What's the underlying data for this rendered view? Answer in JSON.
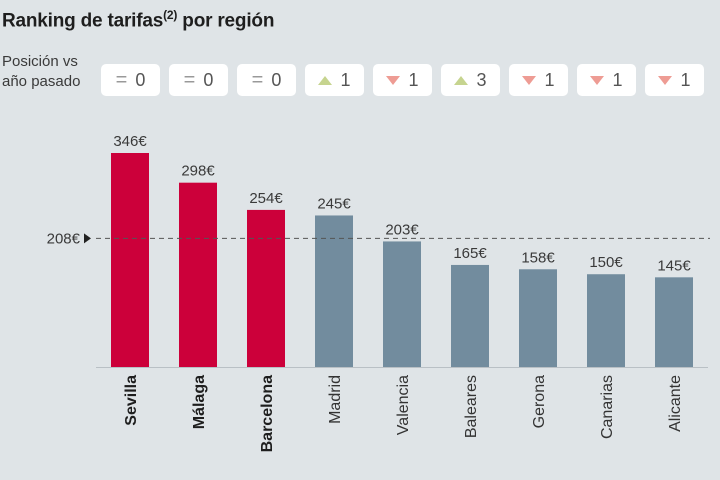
{
  "title": {
    "text": "Ranking de tarifas",
    "superscript": "(2)",
    "suffix": " por región"
  },
  "position_label": "Posición vs año pasado",
  "position_changes": [
    {
      "type": "equal",
      "value": "0"
    },
    {
      "type": "equal",
      "value": "0"
    },
    {
      "type": "equal",
      "value": "0"
    },
    {
      "type": "up",
      "value": "1"
    },
    {
      "type": "down",
      "value": "1"
    },
    {
      "type": "up",
      "value": "3"
    },
    {
      "type": "down",
      "value": "1"
    },
    {
      "type": "down",
      "value": "1"
    },
    {
      "type": "down",
      "value": "1"
    }
  ],
  "colors": {
    "highlight": "#cc003a",
    "normal": "#728c9e",
    "up": "#c6d48f",
    "down": "#ee9c94"
  },
  "chart_data": {
    "type": "bar",
    "title": "Ranking de tarifas(2) por región",
    "categories": [
      "Sevilla",
      "Málaga",
      "Barcelona",
      "Madrid",
      "Valencia",
      "Baleares",
      "Gerona",
      "Canarias",
      "Alicante"
    ],
    "values": [
      346,
      298,
      254,
      245,
      203,
      165,
      158,
      150,
      145
    ],
    "value_labels": [
      "346€",
      "298€",
      "254€",
      "245€",
      "203€",
      "165€",
      "158€",
      "150€",
      "145€"
    ],
    "highlighted": [
      true,
      true,
      true,
      false,
      false,
      false,
      false,
      false,
      false
    ],
    "reference_line": {
      "value": 208,
      "label": "208€"
    },
    "unit": "€",
    "xlabel": "",
    "ylabel": "",
    "ylim": [
      0,
      346
    ],
    "grid": false
  }
}
